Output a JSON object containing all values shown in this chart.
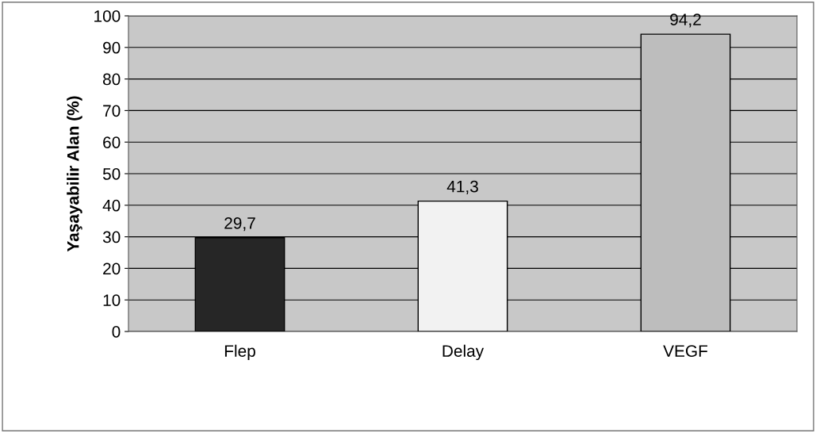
{
  "chart_data": {
    "type": "bar",
    "ylabel": "Yaşayabilir Alan (%)",
    "categories": [
      "Flep",
      "Delay",
      "VEGF"
    ],
    "values": [
      29.7,
      41.3,
      94.2
    ],
    "colors": [
      "#262626",
      "#f2f2f2",
      "#bdbdbd"
    ],
    "value_labels": [
      "29,7",
      "41,3",
      "94,2"
    ],
    "ylim": [
      0,
      100
    ],
    "yticks": [
      0,
      10,
      20,
      30,
      40,
      50,
      60,
      70,
      80,
      90,
      100
    ],
    "grid": "y",
    "legend": false
  }
}
